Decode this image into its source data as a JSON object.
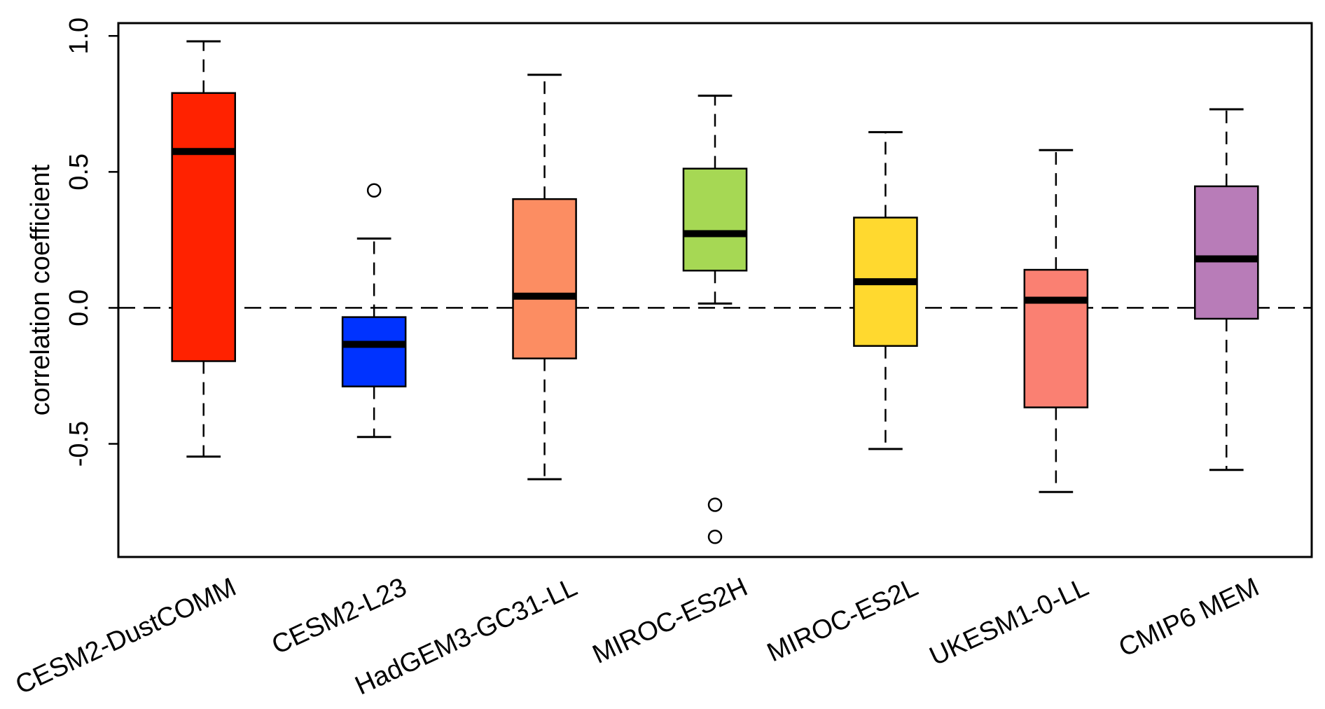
{
  "chart_data": {
    "type": "box",
    "y_label": "correlation  coefficient",
    "categories": [
      "CESM2-DustCOMM",
      "CESM2-L23",
      "HadGEM3-GC31-LL",
      "MIROC-ES2H",
      "MIROC-ES2L",
      "UKESM1-0-LL",
      "CMIP6 MEM"
    ],
    "boxes": [
      {
        "color": "#ff2200",
        "whisker_low": -0.547,
        "q1": -0.196,
        "median": 0.575,
        "q3": 0.79,
        "whisker_high": 0.98,
        "outliers": []
      },
      {
        "color": "#0033ff",
        "whisker_low": -0.475,
        "q1": -0.289,
        "median": -0.134,
        "q3": -0.034,
        "whisker_high": 0.255,
        "outliers": [
          0.432
        ]
      },
      {
        "color": "#fc8d62",
        "whisker_low": -0.63,
        "q1": -0.186,
        "median": 0.043,
        "q3": 0.4,
        "whisker_high": 0.857,
        "outliers": []
      },
      {
        "color": "#a6d854",
        "whisker_low": 0.016,
        "q1": 0.137,
        "median": 0.273,
        "q3": 0.512,
        "whisker_high": 0.78,
        "outliers": [
          -0.724,
          -0.842
        ]
      },
      {
        "color": "#ffd92f",
        "whisker_low": -0.519,
        "q1": -0.14,
        "median": 0.096,
        "q3": 0.332,
        "whisker_high": 0.646,
        "outliers": []
      },
      {
        "color": "#fa8072",
        "whisker_low": -0.677,
        "q1": -0.366,
        "median": 0.028,
        "q3": 0.14,
        "whisker_high": 0.58,
        "outliers": []
      },
      {
        "color": "#b87cb8",
        "whisker_low": -0.596,
        "q1": -0.04,
        "median": 0.18,
        "q3": 0.447,
        "whisker_high": 0.73,
        "outliers": []
      }
    ],
    "reference_line": 0,
    "ylim": [
      -0.916,
      1.047
    ],
    "yticks": [
      {
        "value": 1,
        "label": "1.0"
      },
      0.5,
      {
        "value": 0,
        "label": "0.0"
      },
      -0.5
    ]
  }
}
